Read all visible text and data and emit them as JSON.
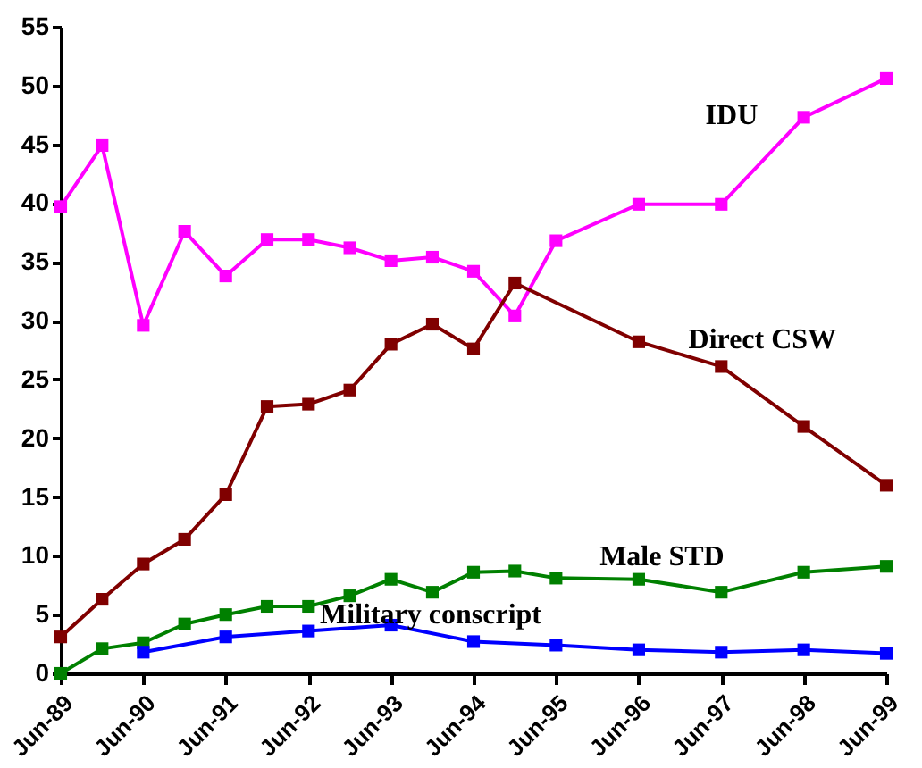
{
  "chart_data": {
    "type": "line",
    "marker": "square",
    "grid": false,
    "x": [
      "1989-06",
      "1989-12",
      "1990-06",
      "1990-12",
      "1991-06",
      "1991-12",
      "1992-06",
      "1992-12",
      "1993-06",
      "1993-12",
      "1994-06",
      "1994-12",
      "1995-06",
      "1996-06",
      "1997-06",
      "1998-06",
      "1999-06"
    ],
    "xlim": [
      "1989-06",
      "1999-06"
    ],
    "xticks": [
      {
        "value": "1989-06",
        "label": "Jun-89"
      },
      {
        "value": "1990-06",
        "label": "Jun-90"
      },
      {
        "value": "1991-06",
        "label": "Jun-91"
      },
      {
        "value": "1992-06",
        "label": "Jun-92"
      },
      {
        "value": "1993-06",
        "label": "Jun-93"
      },
      {
        "value": "1994-06",
        "label": "Jun-94"
      },
      {
        "value": "1995-06",
        "label": "Jun-95"
      },
      {
        "value": "1996-06",
        "label": "Jun-96"
      },
      {
        "value": "1997-06",
        "label": "Jun-97"
      },
      {
        "value": "1998-06",
        "label": "Jun-98"
      },
      {
        "value": "1999-06",
        "label": "Jun-99"
      }
    ],
    "ylim": [
      0,
      55
    ],
    "yticks": [
      0,
      5,
      10,
      15,
      20,
      25,
      30,
      35,
      40,
      45,
      50,
      55
    ],
    "series": [
      {
        "name": "IDU",
        "color": "#ff00ff",
        "values": [
          39.7,
          44.9,
          29.6,
          37.6,
          33.8,
          36.9,
          36.9,
          36.2,
          35.1,
          35.4,
          34.2,
          30.4,
          36.8,
          39.9,
          39.9,
          47.3,
          50.6
        ]
      },
      {
        "name": "Direct CSW",
        "color": "#800000",
        "x": [
          "1989-06",
          "1989-12",
          "1990-06",
          "1990-12",
          "1991-06",
          "1991-12",
          "1992-06",
          "1992-12",
          "1993-06",
          "1993-12",
          "1994-06",
          "1994-12",
          "1996-06",
          "1997-06",
          "1998-06",
          "1999-06"
        ],
        "values": [
          3.1,
          6.3,
          9.3,
          11.4,
          15.2,
          22.7,
          22.9,
          24.1,
          28.0,
          29.7,
          27.6,
          33.2,
          28.2,
          26.1,
          21.0,
          16.0
        ]
      },
      {
        "name": "Male STD",
        "color": "#008000",
        "values": [
          0,
          2.1,
          2.6,
          4.2,
          5.0,
          5.7,
          5.7,
          6.6,
          8.0,
          6.9,
          8.6,
          8.7,
          8.1,
          8.0,
          6.9,
          8.6,
          9.1
        ]
      },
      {
        "name": "Military conscript",
        "color": "#0000ff",
        "x": [
          "1990-06",
          "1991-06",
          "1992-06",
          "1993-06",
          "1994-06",
          "1995-06",
          "1996-06",
          "1997-06",
          "1998-06",
          "1999-06"
        ],
        "values": [
          1.8,
          3.1,
          3.6,
          4.1,
          2.7,
          2.4,
          2.0,
          1.8,
          2.0,
          1.7
        ]
      }
    ]
  }
}
